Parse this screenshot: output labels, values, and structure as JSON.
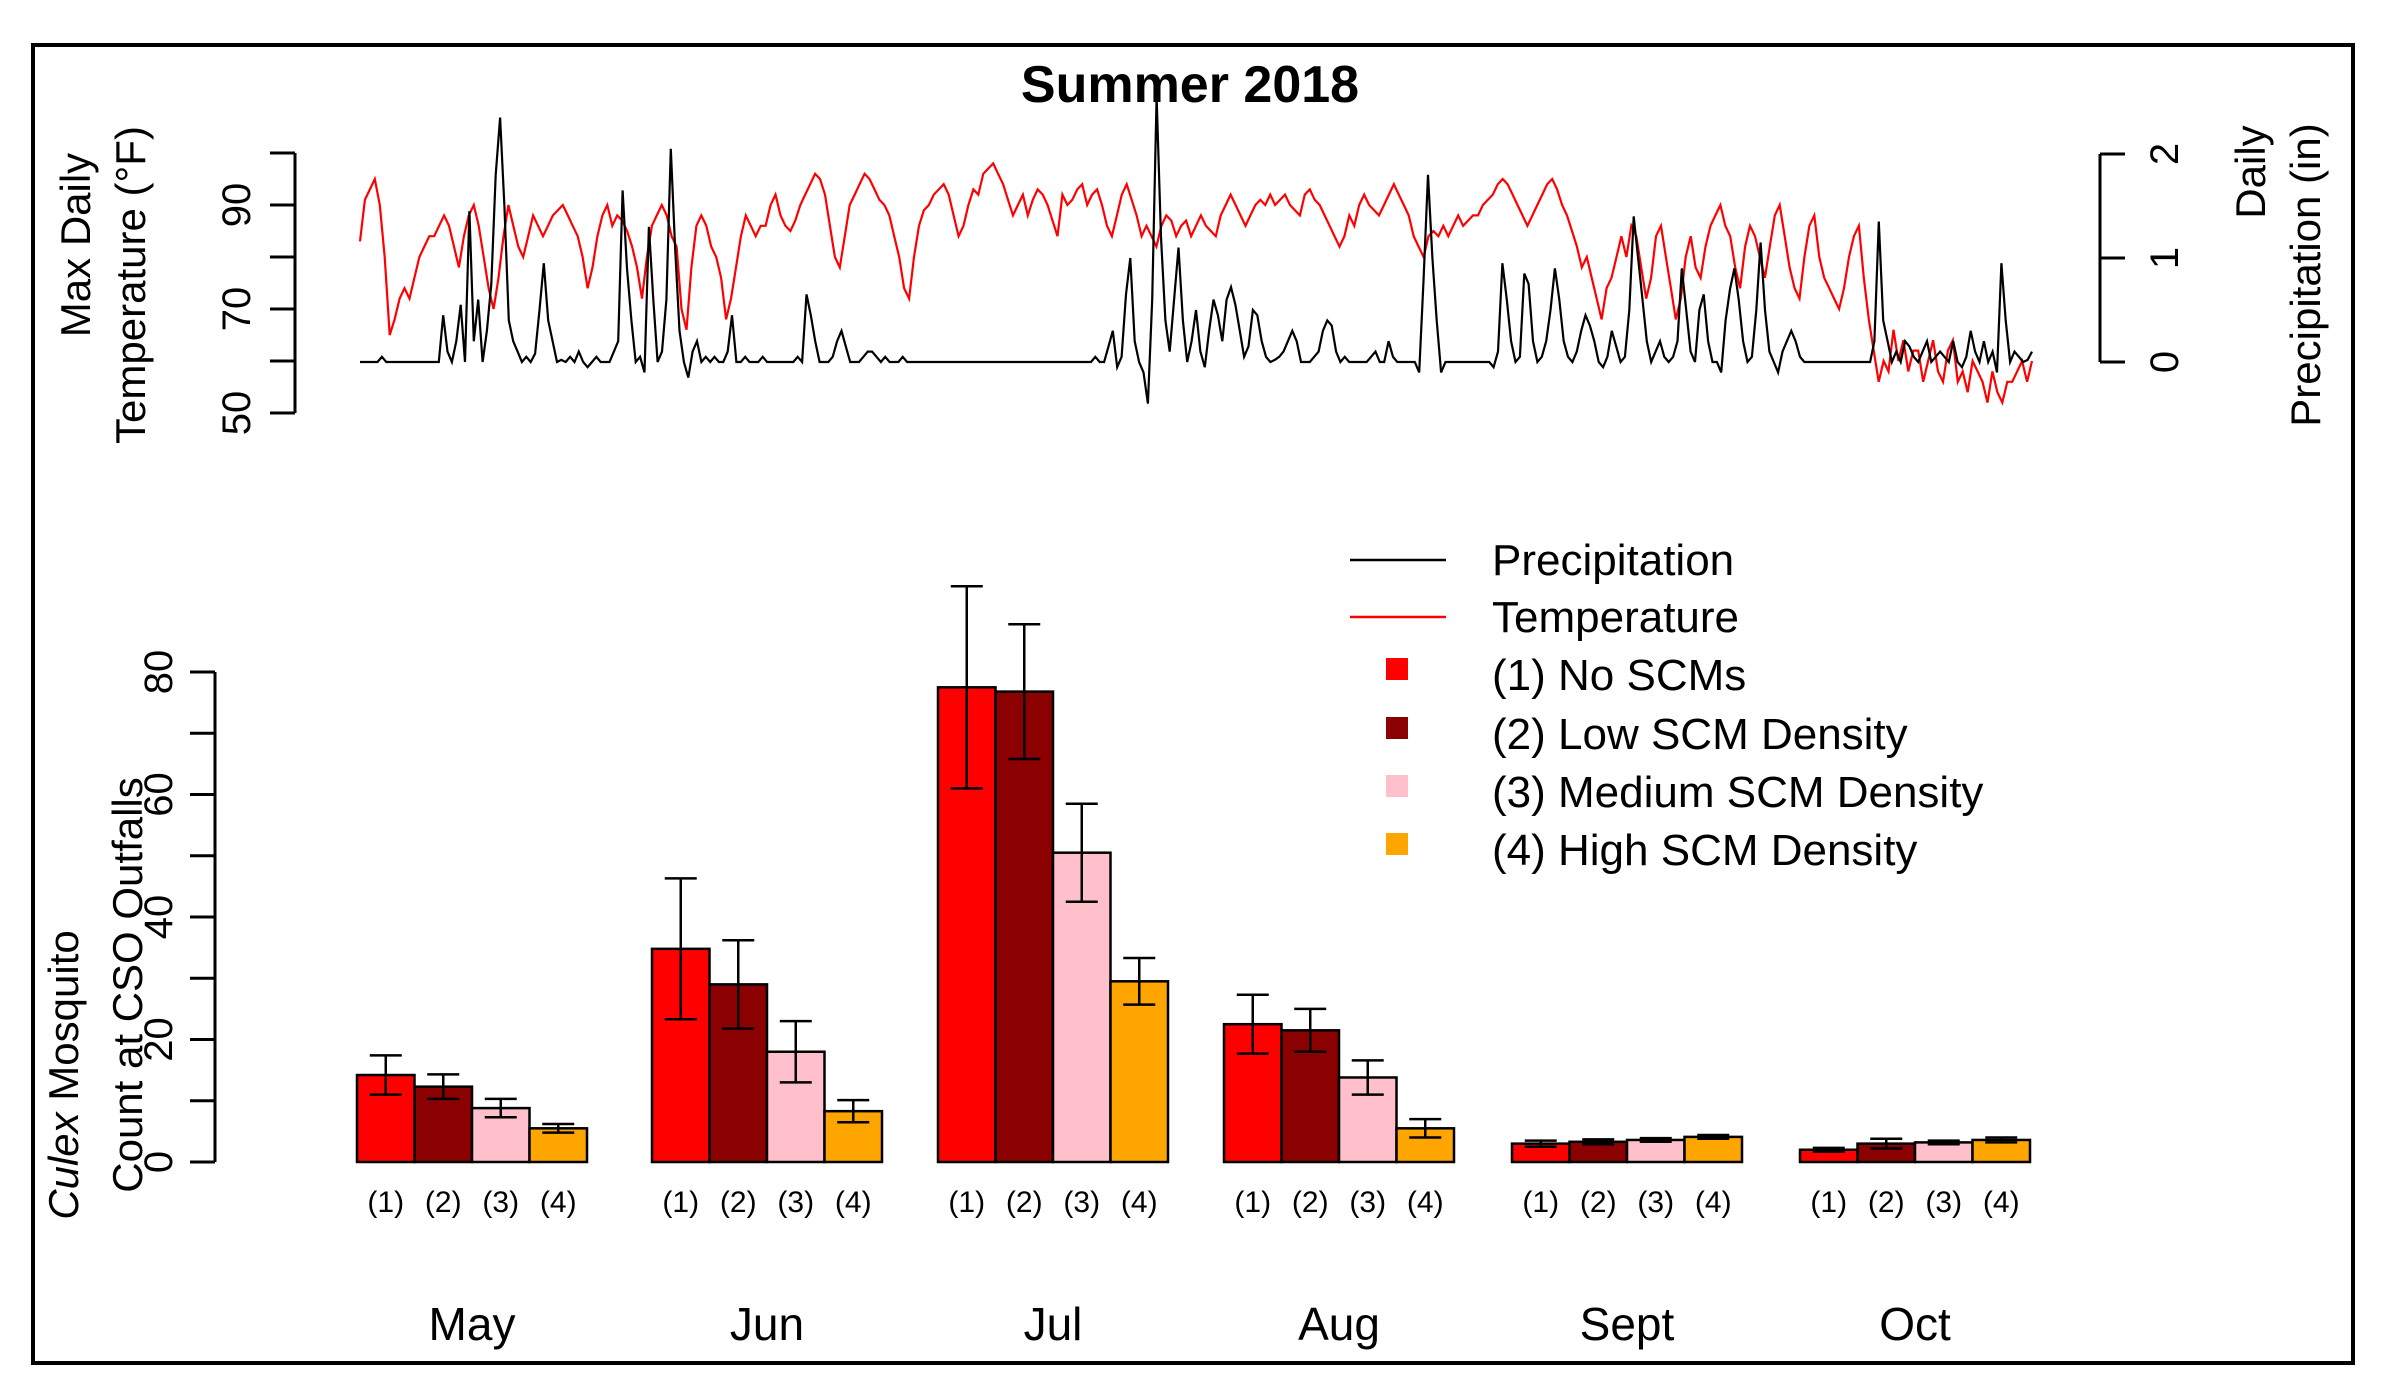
{
  "chart_data": [
    {
      "type": "line",
      "title": "Summer 2018",
      "ylabel_left": [
        "Max Daily",
        "Temperature (°F)"
      ],
      "ylabel_right": [
        "Daily",
        "Precipitation (in)"
      ],
      "temperature_ticks": [
        "50",
        "70",
        "90"
      ],
      "temperature_ylim": [
        50,
        100
      ],
      "precip_ticks": [
        "0",
        "1",
        "2"
      ],
      "precip_ylim": [
        0,
        2
      ],
      "series": [
        {
          "name": "Temperature",
          "color": "#ff0000",
          "axis": "left",
          "values": [
            83,
            91,
            93,
            95,
            90,
            80,
            65,
            68,
            72,
            74,
            72,
            76,
            80,
            82,
            84,
            84,
            86,
            88,
            86,
            82,
            78,
            84,
            88,
            90,
            86,
            80,
            74,
            70,
            76,
            84,
            90,
            86,
            82,
            80,
            84,
            88,
            86,
            84,
            86,
            88,
            89,
            90,
            88,
            86,
            84,
            80,
            74,
            78,
            84,
            88,
            90,
            86,
            88,
            87,
            85,
            82,
            78,
            72,
            80,
            86,
            88,
            90,
            88,
            84,
            82,
            70,
            66,
            78,
            86,
            88,
            86,
            82,
            80,
            76,
            68,
            72,
            78,
            84,
            88,
            86,
            84,
            86,
            86,
            90,
            92,
            88,
            86,
            85,
            87,
            90,
            92,
            94,
            96,
            95,
            92,
            86,
            80,
            78,
            84,
            90,
            92,
            94,
            96,
            95,
            93,
            91,
            90,
            88,
            84,
            80,
            74,
            72,
            80,
            86,
            89,
            90,
            92,
            93,
            94,
            92,
            88,
            84,
            86,
            90,
            93,
            92,
            96,
            97,
            98,
            96,
            94,
            91,
            88,
            90,
            92,
            88,
            91,
            93,
            92,
            90,
            87,
            84,
            92,
            90,
            91,
            93,
            94,
            90,
            92,
            93,
            90,
            86,
            84,
            88,
            92,
            94,
            91,
            88,
            84,
            86,
            84,
            82,
            86,
            88,
            87,
            84,
            86,
            87,
            84,
            86,
            88,
            86,
            85,
            84,
            88,
            90,
            92,
            90,
            88,
            86,
            88,
            90,
            91,
            90,
            92,
            90,
            91,
            92,
            90,
            89,
            88,
            92,
            93,
            91,
            90,
            88,
            86,
            84,
            82,
            84,
            88,
            86,
            90,
            92,
            90,
            89,
            88,
            90,
            92,
            94,
            92,
            90,
            88,
            84,
            82,
            80,
            84,
            85,
            84,
            86,
            84,
            86,
            88,
            86,
            87,
            88,
            88,
            90,
            91,
            92,
            94,
            95,
            94,
            92,
            90,
            88,
            86,
            88,
            90,
            92,
            94,
            95,
            93,
            90,
            88,
            85,
            82,
            78,
            80,
            76,
            72,
            68,
            74,
            76,
            80,
            84,
            80,
            86,
            84,
            78,
            72,
            76,
            84,
            86,
            80,
            74,
            68,
            72,
            80,
            84,
            78,
            76,
            82,
            86,
            88,
            90,
            86,
            84,
            78,
            74,
            82,
            86,
            84,
            80,
            76,
            82,
            88,
            90,
            84,
            78,
            74,
            72,
            80,
            86,
            88,
            80,
            76,
            74,
            72,
            70,
            74,
            80,
            84,
            86,
            76,
            68,
            62,
            56,
            60,
            58,
            66,
            60,
            64,
            58,
            62,
            62,
            56,
            60,
            64,
            58,
            56,
            62,
            64,
            56,
            58,
            54,
            60,
            58,
            56,
            52,
            58,
            54,
            52,
            56,
            56,
            58,
            60,
            56,
            60
          ],
          "note": "daily maximum temperature series approximated from plot"
        },
        {
          "name": "Precipitation",
          "color": "#000000",
          "axis": "right",
          "values": [
            0,
            0,
            0,
            0,
            0,
            0.05,
            0,
            0,
            0,
            0,
            0,
            0,
            0,
            0,
            0,
            0,
            0,
            0,
            0,
            0.45,
            0.1,
            0,
            0.2,
            0.55,
            0,
            1.45,
            0.2,
            0.6,
            0,
            0.3,
            0.75,
            1.8,
            2.35,
            1.5,
            0.4,
            0.2,
            0.1,
            0,
            0.05,
            0,
            0.08,
            0.5,
            0.95,
            0.4,
            0.2,
            0,
            0.02,
            0,
            0.05,
            0,
            0.1,
            0,
            -0.05,
            0,
            0.05,
            0,
            0,
            0,
            0.1,
            0.2,
            1.65,
            0.9,
            0.4,
            0,
            0.05,
            -0.1,
            1.3,
            0.6,
            0,
            0.1,
            0.6,
            2.05,
            1.1,
            0.3,
            0,
            -0.15,
            0.1,
            0.2,
            0,
            0.05,
            0,
            0.05,
            0,
            0,
            0.1,
            0.45,
            0,
            0,
            0.05,
            0,
            0,
            0,
            0.05,
            0,
            0,
            0,
            0,
            0,
            0,
            0,
            0.05,
            0,
            0.65,
            0.45,
            0.2,
            0,
            0,
            0,
            0.05,
            0.2,
            0.3,
            0.15,
            0,
            0,
            0,
            0.05,
            0.1,
            0.1,
            0.05,
            0,
            0.05,
            0,
            0,
            0,
            0.05,
            0,
            0,
            0,
            0,
            0,
            0,
            0,
            0,
            0,
            0,
            0,
            0,
            0,
            0,
            0,
            0,
            0,
            0,
            0,
            0,
            0,
            0,
            0,
            0,
            0,
            0,
            0,
            0,
            0,
            0,
            0,
            0,
            0,
            0,
            0,
            0,
            0,
            0,
            0,
            0,
            0,
            0,
            0,
            0.05,
            0,
            0,
            0.15,
            0.3,
            -0.05,
            0.05,
            0.65,
            1.0,
            0.2,
            0,
            -0.1,
            -0.4,
            0.6,
            2.55,
            1.2,
            0.4,
            0.1,
            0.6,
            1.1,
            0.4,
            0,
            0.2,
            0.5,
            0.1,
            -0.05,
            0.3,
            0.6,
            0.45,
            0.2,
            0.6,
            0.72,
            0.55,
            0.3,
            0.05,
            0.15,
            0.5,
            0.45,
            0.2,
            0.05,
            0,
            0.02,
            0.05,
            0.1,
            0.2,
            0.3,
            0.2,
            0,
            0,
            0,
            0.05,
            0.1,
            0.3,
            0.4,
            0.35,
            0.1,
            0,
            0.05,
            0,
            0,
            0,
            0,
            0,
            0.05,
            0.1,
            0,
            0,
            0.2,
            0.05,
            0,
            0,
            0,
            0,
            0,
            -0.1,
            0.8,
            1.8,
            1.0,
            0.4,
            -0.1,
            0,
            0,
            0,
            0,
            0,
            0,
            0,
            0,
            0,
            0,
            0,
            -0.05,
            0.1,
            0.95,
            0.6,
            0.2,
            0,
            0.05,
            0.85,
            0.75,
            0.2,
            0,
            0.05,
            0.2,
            0.5,
            0.9,
            0.6,
            0.2,
            0.05,
            0,
            0.1,
            0.3,
            0.45,
            0.35,
            0.2,
            0,
            -0.05,
            0.05,
            0.3,
            0.15,
            0,
            0.05,
            0.5,
            1.4,
            1.0,
            0.6,
            0.2,
            0,
            0.1,
            0.2,
            0.05,
            0,
            0.05,
            0.2,
            0.9,
            0.5,
            0.1,
            0,
            0.5,
            0.65,
            0.2,
            0,
            0,
            -0.1,
            0.4,
            0.7,
            0.9,
            0.6,
            0.2,
            0,
            0.05,
            0.5,
            1.15,
            0.5,
            0.1,
            0,
            -0.1,
            0.1,
            0.2,
            0.3,
            0.2,
            0.05,
            0,
            0,
            0,
            0,
            0,
            0,
            0,
            0,
            0,
            0,
            0,
            0,
            0,
            0,
            0,
            0,
            0.2,
            1.35,
            0.4,
            0.2,
            0,
            0.1,
            0,
            0.2,
            0.15,
            0.05,
            0,
            0.1,
            0.2,
            0,
            0.05,
            0.1,
            0.05,
            0,
            0.2,
            0,
            -0.05,
            0.05,
            0.3,
            0.1,
            0,
            0.2,
            0,
            0.1,
            -0.1,
            0.95,
            0.4,
            0,
            0.1,
            0.05,
            0,
            0.02,
            0.1
          ]
        }
      ]
    },
    {
      "type": "bar",
      "ylabel_italic": "Culex",
      "ylabel": [
        " Mosquito",
        "Count at CSO Outfalls"
      ],
      "ylim": [
        0,
        80
      ],
      "y_ticks": [
        "0",
        "20",
        "40",
        "60",
        "80"
      ],
      "categories": [
        "May",
        "Jun",
        "Jul",
        "Aug",
        "Sept",
        "Oct"
      ],
      "group_labels": [
        "(1)",
        "(2)",
        "(3)",
        "(4)"
      ],
      "series": [
        {
          "name": "(1) No SCMs",
          "color": "#ff0000",
          "values": [
            14.2,
            34.8,
            77.5,
            22.5,
            3.0,
            2.0
          ],
          "err": [
            3.2,
            11.5,
            16.5,
            4.8,
            0.5,
            0.3
          ]
        },
        {
          "name": "(2) Low SCM Density",
          "color": "#8b0000",
          "values": [
            12.3,
            29.0,
            76.8,
            21.5,
            3.3,
            3.0
          ],
          "err": [
            2.0,
            7.2,
            11.0,
            3.5,
            0.4,
            0.8
          ]
        },
        {
          "name": "(3) Medium SCM Density",
          "color": "#ffc0cb",
          "values": [
            8.8,
            18.0,
            50.5,
            13.8,
            3.6,
            3.2
          ],
          "err": [
            1.5,
            5.0,
            8.0,
            2.8,
            0.3,
            0.3
          ]
        },
        {
          "name": "(4) High SCM Density",
          "color": "#ffa500",
          "values": [
            5.5,
            8.3,
            29.5,
            5.5,
            4.1,
            3.6
          ],
          "err": [
            0.7,
            1.8,
            3.8,
            1.5,
            0.3,
            0.4
          ]
        }
      ],
      "legend": [
        {
          "label": "Precipitation",
          "kind": "line",
          "color": "#000000"
        },
        {
          "label": "Temperature",
          "kind": "line",
          "color": "#ff0000"
        },
        {
          "label": "(1) No SCMs",
          "kind": "square",
          "color": "#ff0000"
        },
        {
          "label": "(2) Low SCM Density",
          "kind": "square",
          "color": "#8b0000"
        },
        {
          "label": "(3) Medium SCM Density",
          "kind": "square",
          "color": "#ffc0cb"
        },
        {
          "label": "(4) High SCM Density",
          "kind": "square",
          "color": "#ffa500"
        }
      ],
      "legend_position": "top-right"
    }
  ]
}
